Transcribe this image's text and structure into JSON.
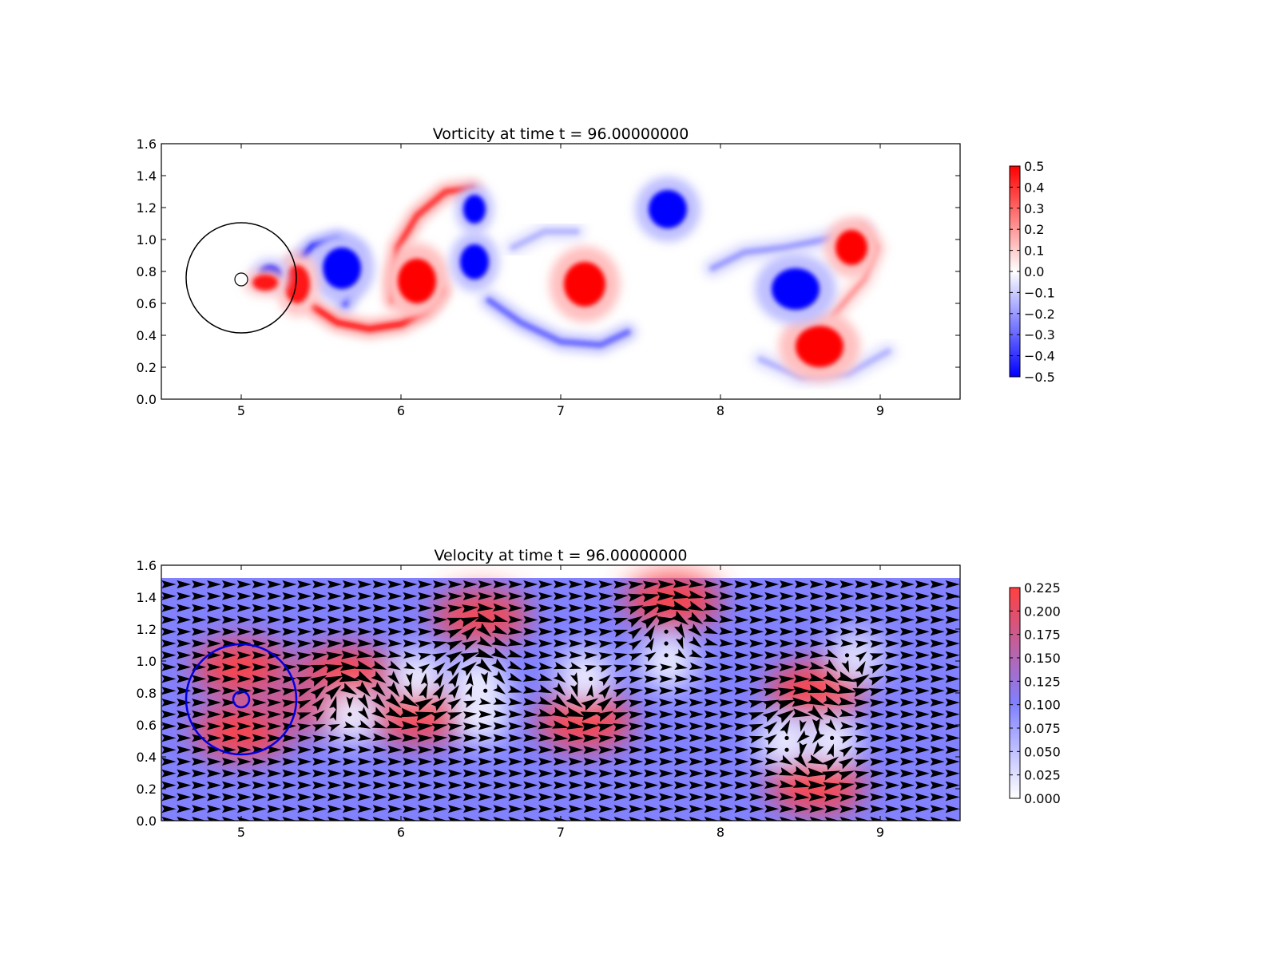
{
  "chart_data": [
    {
      "type": "heatmap",
      "title": "Vorticity at time t =    96.00000000",
      "xlabel": "",
      "ylabel": "",
      "xlim": [
        4.5,
        9.5
      ],
      "ylim": [
        0.0,
        1.6
      ],
      "xticks": [
        "5",
        "6",
        "7",
        "8",
        "9"
      ],
      "yticks": [
        "0.0",
        "0.2",
        "0.4",
        "0.6",
        "0.8",
        "1.0",
        "1.2",
        "1.4",
        "1.6"
      ],
      "colorbar": {
        "range": [
          -0.5,
          0.5
        ],
        "colors": [
          "#0000ff",
          "#ffffff",
          "#ff0000"
        ],
        "ticks": [
          "0.5",
          "0.4",
          "0.3",
          "0.2",
          "0.1",
          "0.0",
          "−0.1",
          "−0.2",
          "−0.3",
          "−0.4",
          "−0.5"
        ]
      },
      "body": {
        "center": [
          5.0,
          0.75
        ],
        "radius": 0.04
      },
      "circle": {
        "center": [
          5.0,
          0.76
        ],
        "radius": 0.345
      },
      "vortices": [
        {
          "x": 6.1,
          "y": 0.74,
          "value": 0.5,
          "rx": 0.12,
          "ry": 0.14
        },
        {
          "x": 7.15,
          "y": 0.72,
          "value": 0.5,
          "rx": 0.13,
          "ry": 0.14
        },
        {
          "x": 8.62,
          "y": 0.33,
          "value": 0.5,
          "rx": 0.15,
          "ry": 0.13
        },
        {
          "x": 8.82,
          "y": 0.95,
          "value": 0.5,
          "rx": 0.1,
          "ry": 0.11
        },
        {
          "x": 5.63,
          "y": 0.82,
          "value": -0.5,
          "rx": 0.12,
          "ry": 0.13
        },
        {
          "x": 6.46,
          "y": 0.86,
          "value": -0.5,
          "rx": 0.09,
          "ry": 0.11
        },
        {
          "x": 6.46,
          "y": 1.19,
          "value": -0.5,
          "rx": 0.07,
          "ry": 0.09
        },
        {
          "x": 7.67,
          "y": 1.19,
          "value": -0.5,
          "rx": 0.12,
          "ry": 0.12
        },
        {
          "x": 8.47,
          "y": 0.69,
          "value": -0.5,
          "rx": 0.15,
          "ry": 0.13
        },
        {
          "x": 5.35,
          "y": 0.72,
          "value": 0.45,
          "rx": 0.08,
          "ry": 0.12
        },
        {
          "x": 5.18,
          "y": 0.78,
          "value": -0.45,
          "rx": 0.07,
          "ry": 0.06
        },
        {
          "x": 5.15,
          "y": 0.73,
          "value": 0.45,
          "rx": 0.08,
          "ry": 0.05
        }
      ],
      "shear_layers": [
        {
          "path": [
            [
              5.33,
              0.83
            ],
            [
              5.45,
              0.96
            ],
            [
              5.6,
              1.0
            ],
            [
              5.72,
              0.92
            ],
            [
              5.65,
              0.6
            ]
          ],
          "value": -0.45
        },
        {
          "path": [
            [
              5.45,
              0.58
            ],
            [
              5.6,
              0.48
            ],
            [
              5.8,
              0.44
            ],
            [
              6.0,
              0.47
            ],
            [
              6.15,
              0.55
            ],
            [
              6.25,
              0.68
            ]
          ],
          "value": 0.45
        },
        {
          "path": [
            [
              5.95,
              0.62
            ],
            [
              5.98,
              0.95
            ],
            [
              6.1,
              1.15
            ],
            [
              6.28,
              1.3
            ],
            [
              6.45,
              1.32
            ]
          ],
          "value": 0.4
        },
        {
          "path": [
            [
              6.55,
              0.62
            ],
            [
              6.75,
              0.48
            ],
            [
              7.0,
              0.36
            ],
            [
              7.25,
              0.34
            ],
            [
              7.42,
              0.42
            ]
          ],
          "value": -0.3
        },
        {
          "path": [
            [
              6.7,
              0.95
            ],
            [
              6.9,
              1.05
            ],
            [
              7.1,
              1.05
            ]
          ],
          "value": -0.15
        },
        {
          "path": [
            [
              7.95,
              0.82
            ],
            [
              8.15,
              0.92
            ],
            [
              8.4,
              0.95
            ],
            [
              8.65,
              1.0
            ],
            [
              8.9,
              1.05
            ]
          ],
          "value": -0.2
        },
        {
          "path": [
            [
              8.7,
              0.52
            ],
            [
              8.9,
              0.75
            ],
            [
              8.98,
              0.95
            ],
            [
              8.88,
              1.08
            ]
          ],
          "value": 0.2
        },
        {
          "path": [
            [
              8.25,
              0.25
            ],
            [
              8.5,
              0.14
            ],
            [
              8.8,
              0.16
            ],
            [
              9.05,
              0.3
            ]
          ],
          "value": -0.15
        }
      ]
    },
    {
      "type": "heatmap",
      "title": "Velocity at time t =    96.00000000",
      "xlabel": "",
      "ylabel": "",
      "xlim": [
        4.5,
        9.5
      ],
      "ylim": [
        0.0,
        1.6
      ],
      "xticks": [
        "5",
        "6",
        "7",
        "8",
        "9"
      ],
      "yticks": [
        "0.0",
        "0.2",
        "0.4",
        "0.6",
        "0.8",
        "1.0",
        "1.2",
        "1.4",
        "1.6"
      ],
      "field_top": 1.52,
      "background_speed": 0.1,
      "colorbar": {
        "range": [
          0.0,
          0.225
        ],
        "colors": [
          "#ffffff",
          "#8080ff",
          "#ff4040"
        ],
        "ticks": [
          "0.225",
          "0.200",
          "0.175",
          "0.150",
          "0.125",
          "0.100",
          "0.075",
          "0.050",
          "0.025",
          "0.000"
        ]
      },
      "body": {
        "center": [
          5.0,
          0.76
        ],
        "radius": 0.05
      },
      "circle": {
        "center": [
          5.0,
          0.76
        ],
        "radius": 0.345
      },
      "high_speed_regions": [
        {
          "x": 5.0,
          "y": 0.96,
          "speed": 0.22
        },
        {
          "x": 5.0,
          "y": 0.56,
          "speed": 0.22
        },
        {
          "x": 5.65,
          "y": 0.92,
          "speed": 0.22
        },
        {
          "x": 6.1,
          "y": 0.66,
          "speed": 0.22
        },
        {
          "x": 7.15,
          "y": 0.62,
          "speed": 0.22
        },
        {
          "x": 6.5,
          "y": 1.28,
          "speed": 0.21
        },
        {
          "x": 7.7,
          "y": 1.38,
          "speed": 0.22
        },
        {
          "x": 8.6,
          "y": 0.82,
          "speed": 0.22
        },
        {
          "x": 8.6,
          "y": 0.22,
          "speed": 0.22
        },
        {
          "x": 5.4,
          "y": 0.72,
          "speed": 0.18
        }
      ],
      "low_speed_regions": [
        {
          "x": 5.7,
          "y": 0.66,
          "speed": 0.01
        },
        {
          "x": 6.1,
          "y": 0.9,
          "speed": 0.01
        },
        {
          "x": 6.48,
          "y": 0.86,
          "speed": 0.01
        },
        {
          "x": 6.5,
          "y": 0.66,
          "speed": 0.01
        },
        {
          "x": 7.15,
          "y": 0.9,
          "speed": 0.01
        },
        {
          "x": 7.67,
          "y": 1.0,
          "speed": 0.01
        },
        {
          "x": 8.4,
          "y": 0.5,
          "speed": 0.01
        },
        {
          "x": 8.7,
          "y": 0.5,
          "speed": 0.01
        },
        {
          "x": 8.85,
          "y": 1.02,
          "speed": 0.02
        }
      ],
      "vortices": [
        {
          "x": 5.65,
          "y": 0.8,
          "strength": -1,
          "size": 0.22
        },
        {
          "x": 6.1,
          "y": 0.78,
          "strength": 1,
          "size": 0.2
        },
        {
          "x": 6.48,
          "y": 0.95,
          "strength": -1,
          "size": 0.2
        },
        {
          "x": 6.48,
          "y": 1.2,
          "strength": -1,
          "size": 0.12
        },
        {
          "x": 7.15,
          "y": 0.76,
          "strength": 1,
          "size": 0.2
        },
        {
          "x": 7.67,
          "y": 1.22,
          "strength": -1,
          "size": 0.22
        },
        {
          "x": 8.5,
          "y": 0.62,
          "strength": -1,
          "size": 0.22
        },
        {
          "x": 8.62,
          "y": 0.4,
          "strength": 1,
          "size": 0.2
        },
        {
          "x": 8.82,
          "y": 0.92,
          "strength": 1,
          "size": 0.15
        }
      ],
      "quiver_grid": {
        "nx": 53,
        "ny": 21,
        "free_stream": [
          1,
          0
        ]
      }
    }
  ]
}
